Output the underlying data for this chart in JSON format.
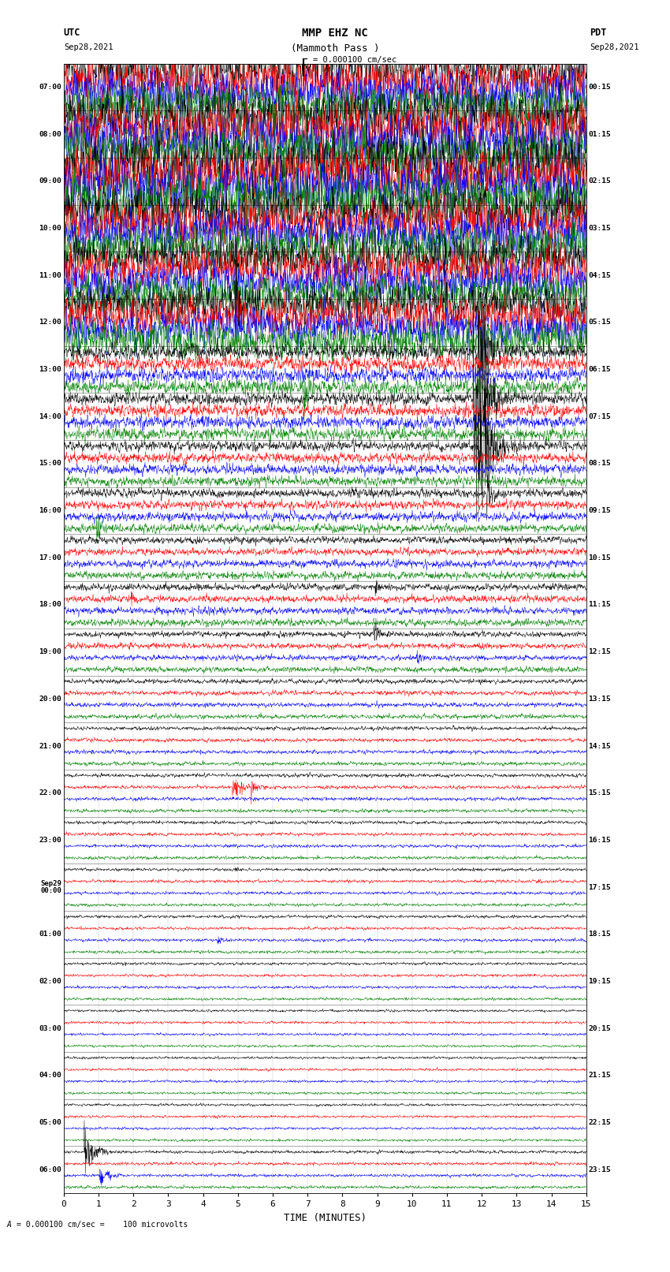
{
  "title_line1": "MMP EHZ NC",
  "title_line2": "(Mammoth Pass )",
  "scale_text": "= 0.000100 cm/sec",
  "left_label_top": "UTC",
  "left_label_date": "Sep28,2021",
  "right_label_top": "PDT",
  "right_label_date": "Sep28,2021",
  "bottom_label": "TIME (MINUTES)",
  "bottom_note": "= 0.000100 cm/sec =    100 microvolts",
  "xlabel_ticks": [
    0,
    1,
    2,
    3,
    4,
    5,
    6,
    7,
    8,
    9,
    10,
    11,
    12,
    13,
    14,
    15
  ],
  "left_time_labels": [
    "07:00",
    "08:00",
    "09:00",
    "10:00",
    "11:00",
    "12:00",
    "13:00",
    "14:00",
    "15:00",
    "16:00",
    "17:00",
    "18:00",
    "19:00",
    "20:00",
    "21:00",
    "22:00",
    "23:00",
    "Sep29\n00:00",
    "01:00",
    "02:00",
    "03:00",
    "04:00",
    "05:00",
    "06:00"
  ],
  "right_time_labels": [
    "00:15",
    "01:15",
    "02:15",
    "03:15",
    "04:15",
    "05:15",
    "06:15",
    "07:15",
    "08:15",
    "09:15",
    "10:15",
    "11:15",
    "12:15",
    "13:15",
    "14:15",
    "15:15",
    "16:15",
    "17:15",
    "18:15",
    "19:15",
    "20:15",
    "21:15",
    "22:15",
    "23:15"
  ],
  "n_rows": 24,
  "n_traces_per_row": 4,
  "colors": [
    "black",
    "red",
    "blue",
    "green"
  ],
  "bg_color": "white",
  "plot_area_color": "white",
  "fig_width": 8.5,
  "fig_height": 16.13,
  "dpi": 100,
  "amplitude_by_row": [
    1.8,
    2.0,
    2.2,
    1.8,
    1.6,
    1.5,
    0.6,
    0.5,
    0.4,
    0.35,
    0.3,
    0.28,
    0.22,
    0.18,
    0.15,
    0.14,
    0.13,
    0.12,
    0.12,
    0.11,
    0.1,
    0.1,
    0.1,
    0.12
  ]
}
